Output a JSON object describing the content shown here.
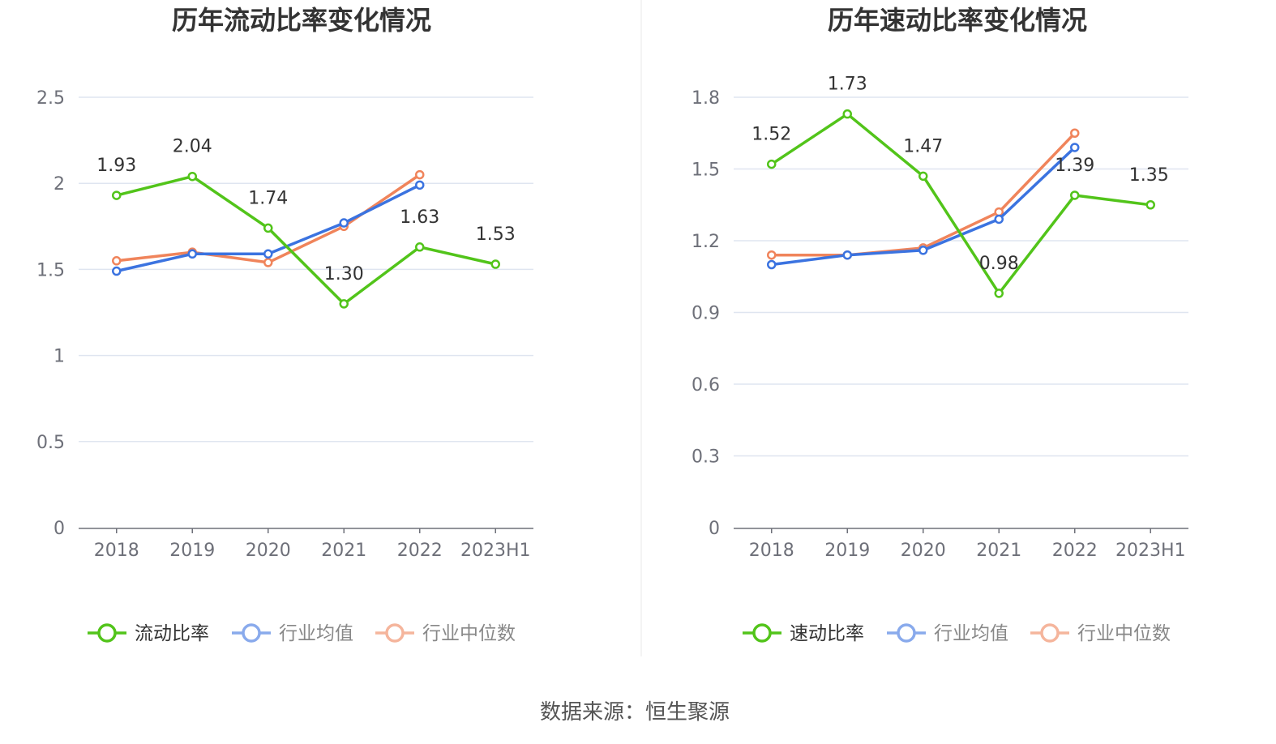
{
  "source": "数据来源：恒生聚源",
  "colors": {
    "primary": "#52c41a",
    "mean": "#3b73e0",
    "median": "#f0845b",
    "grid": "#dfe5f0",
    "axis": "#6e7079"
  },
  "chart_data": [
    {
      "type": "line",
      "title": "历年流动比率变化情况",
      "categories": [
        "2018",
        "2019",
        "2020",
        "2021",
        "2022",
        "2023H1"
      ],
      "ylim": [
        0,
        2.5
      ],
      "yticks": [
        "0",
        "0.5",
        "1",
        "1.5",
        "2",
        "2.5"
      ],
      "series": [
        {
          "name": "流动比率",
          "values": [
            1.93,
            2.04,
            1.74,
            1.3,
            1.63,
            1.53
          ],
          "labels": [
            "1.93",
            "2.04",
            "1.74",
            "1.30",
            "1.63",
            "1.53"
          ]
        },
        {
          "name": "行业均值",
          "values": [
            1.49,
            1.59,
            1.59,
            1.77,
            1.99,
            null
          ]
        },
        {
          "name": "行业中位数",
          "values": [
            1.55,
            1.6,
            1.54,
            1.75,
            2.05,
            null
          ]
        }
      ]
    },
    {
      "type": "line",
      "title": "历年速动比率变化情况",
      "categories": [
        "2018",
        "2019",
        "2020",
        "2021",
        "2022",
        "2023H1"
      ],
      "ylim": [
        0,
        1.8
      ],
      "yticks": [
        "0",
        "0.3",
        "0.6",
        "0.9",
        "1.2",
        "1.5",
        "1.8"
      ],
      "series": [
        {
          "name": "速动比率",
          "values": [
            1.52,
            1.73,
            1.47,
            0.98,
            1.39,
            1.35
          ],
          "labels": [
            "1.52",
            "1.73",
            "1.47",
            "0.98",
            "1.39",
            "1.35"
          ]
        },
        {
          "name": "行业均值",
          "values": [
            1.1,
            1.14,
            1.16,
            1.29,
            1.59,
            null
          ]
        },
        {
          "name": "行业中位数",
          "values": [
            1.14,
            1.14,
            1.17,
            1.32,
            1.65,
            null
          ]
        }
      ]
    }
  ]
}
